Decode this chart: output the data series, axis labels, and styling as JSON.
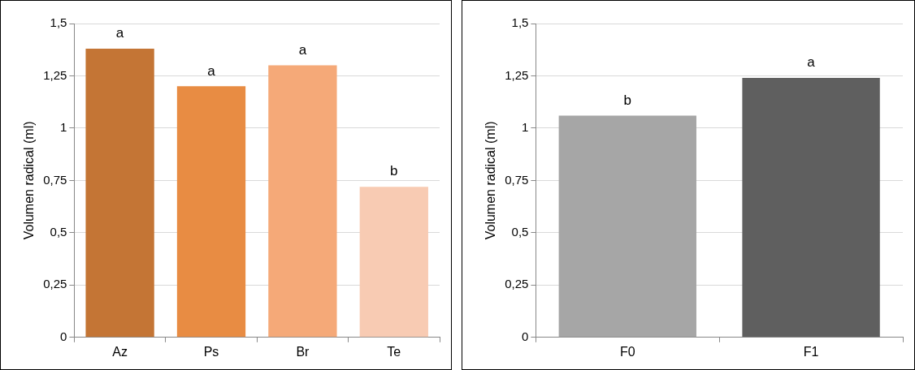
{
  "chart_data": [
    {
      "type": "bar",
      "ylabel": "Volumen radical (ml)",
      "categories": [
        "Az",
        "Ps",
        "Br",
        "Te"
      ],
      "values": [
        1.38,
        1.2,
        1.3,
        0.72
      ],
      "colors": [
        "#c47535",
        "#e88c43",
        "#f5a978",
        "#f8cbb3"
      ],
      "ylim": [
        0,
        1.5
      ],
      "yticks": [
        {
          "value": 0,
          "label": "0"
        },
        {
          "value": 0.25,
          "label": "0,25"
        },
        {
          "value": 0.5,
          "label": "0,5"
        },
        {
          "value": 0.75,
          "label": "0,75"
        },
        {
          "value": 1,
          "label": "1"
        },
        {
          "value": 1.25,
          "label": "1,25"
        },
        {
          "value": 1.5,
          "label": "1,5"
        }
      ],
      "grid": "y",
      "annotations": [
        {
          "text": "a",
          "x": "Az",
          "y": 1.38
        },
        {
          "text": "a",
          "x": "Ps",
          "y": 1.2
        },
        {
          "text": "a",
          "x": "Br",
          "y": 1.3
        },
        {
          "text": "b",
          "x": "Te",
          "y": 0.72
        }
      ]
    },
    {
      "type": "bar",
      "ylabel": "Volumen radical (ml)",
      "categories": [
        "F0",
        "F1"
      ],
      "values": [
        1.06,
        1.24
      ],
      "colors": [
        "#a6a6a6",
        "#5f5f5f"
      ],
      "ylim": [
        0,
        1.5
      ],
      "yticks": [
        {
          "value": 0,
          "label": "0"
        },
        {
          "value": 0.25,
          "label": "0,25"
        },
        {
          "value": 0.5,
          "label": "0,5"
        },
        {
          "value": 0.75,
          "label": "0,75"
        },
        {
          "value": 1,
          "label": "1"
        },
        {
          "value": 1.25,
          "label": "1,25"
        },
        {
          "value": 1.5,
          "label": "1,5"
        }
      ],
      "grid": "y",
      "annotations": [
        {
          "text": "b",
          "x": "F0",
          "y": 1.06
        },
        {
          "text": "a",
          "x": "F1",
          "y": 1.24
        }
      ]
    }
  ]
}
